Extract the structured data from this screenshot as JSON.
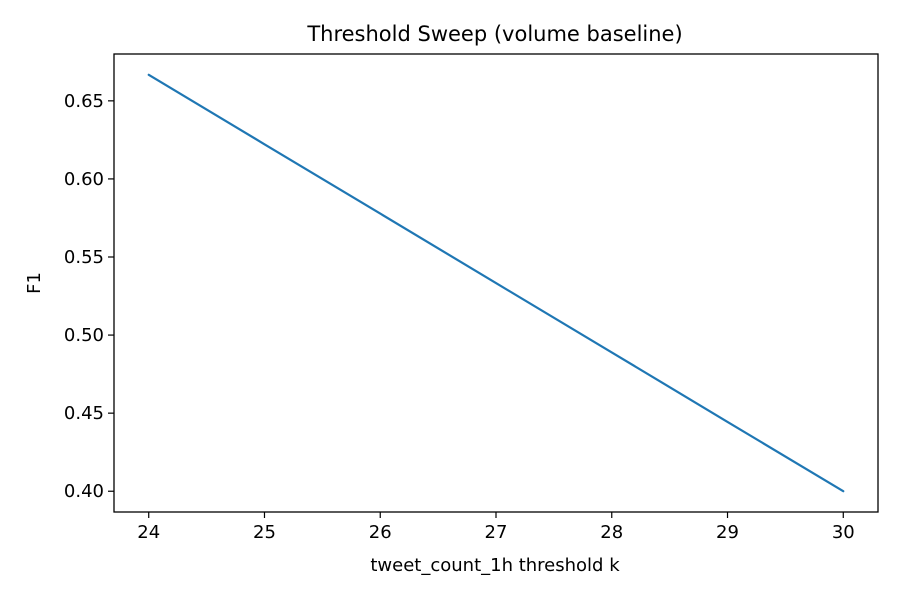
{
  "chart_data": {
    "type": "line",
    "title": "Threshold Sweep (volume baseline)",
    "xlabel": "tweet_count_1h threshold k",
    "ylabel": "F1",
    "xlim": [
      23.7,
      30.3
    ],
    "ylim": [
      0.3867,
      0.68
    ],
    "x_ticks": [
      24,
      25,
      26,
      27,
      28,
      29,
      30
    ],
    "y_ticks": [
      0.4,
      0.45,
      0.5,
      0.55,
      0.6,
      0.65
    ],
    "grid": false,
    "series": [
      {
        "color": "#1f77b4",
        "x": [
          24,
          25,
          26,
          27,
          28,
          29,
          30
        ],
        "y": [
          0.6667,
          0.6222,
          0.5778,
          0.5333,
          0.4889,
          0.4444,
          0.4
        ]
      }
    ]
  }
}
